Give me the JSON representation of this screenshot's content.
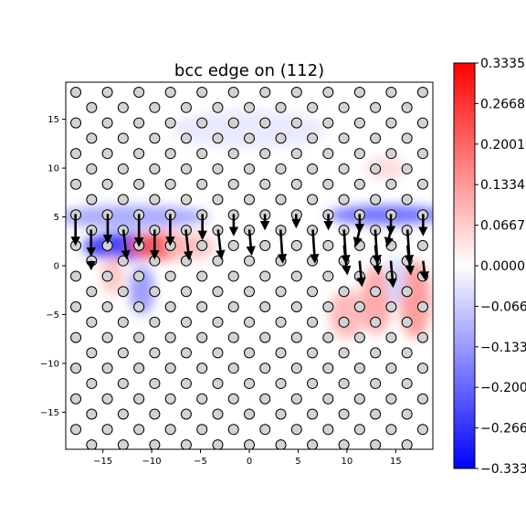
{
  "chart_data": {
    "type": "scatter",
    "title": "bcc edge on (112)",
    "xlabel": "",
    "ylabel": "",
    "xlim": [
      -18.8,
      18.8
    ],
    "ylim": [
      -18.8,
      18.8
    ],
    "xticks": [
      -15,
      -10,
      -5,
      0,
      5,
      10,
      15
    ],
    "yticks": [
      -15,
      -10,
      -5,
      0,
      5,
      10,
      15
    ],
    "grid": false,
    "atoms": {
      "row_spacing": 1.57,
      "col_spacing": 3.23,
      "odd_row_shift": 1.615,
      "y0": 0.0,
      "x0": 0.0,
      "marker": "circle",
      "fill": "#d3d3d3",
      "edge": "#000000"
    },
    "displacement_arrows": [
      {
        "x": -17.8,
        "y": 5.3,
        "dx": 0.0,
        "dy": -2.8
      },
      {
        "x": -16.2,
        "y": 3.7,
        "dx": 0.0,
        "dy": -2.3
      },
      {
        "x": -14.5,
        "y": 5.3,
        "dx": 0.0,
        "dy": -2.6
      },
      {
        "x": -12.9,
        "y": 3.7,
        "dx": 0.3,
        "dy": -2.6
      },
      {
        "x": -11.3,
        "y": 5.3,
        "dx": 0.0,
        "dy": -2.9
      },
      {
        "x": -9.7,
        "y": 3.7,
        "dx": 0.0,
        "dy": -2.6
      },
      {
        "x": -8.1,
        "y": 5.3,
        "dx": 0.0,
        "dy": -2.8
      },
      {
        "x": -6.5,
        "y": 3.7,
        "dx": 0.3,
        "dy": -2.7
      },
      {
        "x": -4.8,
        "y": 5.3,
        "dx": 0.0,
        "dy": -2.2
      },
      {
        "x": -3.2,
        "y": 3.7,
        "dx": 0.3,
        "dy": -2.6
      },
      {
        "x": -1.6,
        "y": 5.3,
        "dx": 0.0,
        "dy": -1.8
      },
      {
        "x": 0.0,
        "y": 3.7,
        "dx": 0.2,
        "dy": -2.2
      },
      {
        "x": 1.6,
        "y": 5.3,
        "dx": 0.0,
        "dy": -1.2
      },
      {
        "x": 3.2,
        "y": 3.7,
        "dx": 0.2,
        "dy": -3.0
      },
      {
        "x": 4.8,
        "y": 5.3,
        "dx": 0.0,
        "dy": -1.0
      },
      {
        "x": 6.5,
        "y": 3.7,
        "dx": 0.2,
        "dy": -3.0
      },
      {
        "x": 8.1,
        "y": 5.3,
        "dx": 0.0,
        "dy": -1.2
      },
      {
        "x": 9.7,
        "y": 3.7,
        "dx": 0.2,
        "dy": -3.1
      },
      {
        "x": 11.3,
        "y": 5.3,
        "dx": 0.0,
        "dy": -1.5
      },
      {
        "x": 12.9,
        "y": 3.7,
        "dx": 0.2,
        "dy": -3.1
      },
      {
        "x": 14.5,
        "y": 5.3,
        "dx": 0.0,
        "dy": -1.7
      },
      {
        "x": 16.2,
        "y": 3.7,
        "dx": 0.2,
        "dy": -3.1
      },
      {
        "x": 17.8,
        "y": 5.3,
        "dx": 0.0,
        "dy": -1.8
      },
      {
        "x": 9.7,
        "y": 2.1,
        "dx": 0.3,
        "dy": -2.6
      },
      {
        "x": 11.3,
        "y": 0.5,
        "dx": 0.2,
        "dy": -2.2
      },
      {
        "x": 12.9,
        "y": 2.1,
        "dx": 0.3,
        "dy": -2.6
      },
      {
        "x": 14.5,
        "y": 0.5,
        "dx": 0.2,
        "dy": -2.3
      },
      {
        "x": 16.2,
        "y": 2.1,
        "dx": 0.3,
        "dy": -2.6
      },
      {
        "x": 17.8,
        "y": 0.5,
        "dx": 0.2,
        "dy": -1.6
      },
      {
        "x": 11.3,
        "y": 3.7,
        "dx": -0.3,
        "dy": -1.3
      },
      {
        "x": 14.5,
        "y": 3.7,
        "dx": -0.3,
        "dy": -1.3
      },
      {
        "x": -16.2,
        "y": 0.5,
        "dx": 0.0,
        "dy": -0.5
      }
    ],
    "colorbar": {
      "cmap": "bwr",
      "ticks": [
        "0.3335",
        "0.2668",
        "0.2001",
        "0.1334",
        "0.0667",
        "0.0000",
        "-0.0667",
        "-0.1334",
        "-0.2001",
        "-0.2668",
        "-0.3335"
      ],
      "min": -0.3335,
      "max": 0.3335
    },
    "strain_field": [
      {
        "x": -13,
        "y": 2.0,
        "v": -0.27,
        "sx": 4.0,
        "sy": 1.4
      },
      {
        "x": -9,
        "y": 2.0,
        "v": 0.22,
        "sx": 3.5,
        "sy": 1.4
      },
      {
        "x": -12,
        "y": 5.0,
        "v": -0.12,
        "sx": 8.0,
        "sy": 1.2
      },
      {
        "x": -11,
        "y": -2.5,
        "v": -0.14,
        "sx": 1.3,
        "sy": 2.5
      },
      {
        "x": -14,
        "y": -1.0,
        "v": 0.08,
        "sx": 1.2,
        "sy": 2.0
      },
      {
        "x": -6,
        "y": 2.0,
        "v": 0.08,
        "sx": 2.5,
        "sy": 1.4
      },
      {
        "x": 14,
        "y": 5.2,
        "v": -0.2,
        "sx": 6.0,
        "sy": 1.0
      },
      {
        "x": 13,
        "y": -3.5,
        "v": 0.12,
        "sx": 1.6,
        "sy": 3.5
      },
      {
        "x": 17,
        "y": -3.5,
        "v": 0.14,
        "sx": 1.6,
        "sy": 4.0
      },
      {
        "x": 10,
        "y": -5.0,
        "v": 0.1,
        "sx": 1.8,
        "sy": 2.5
      },
      {
        "x": 15,
        "y": -1.5,
        "v": -0.06,
        "sx": 1.0,
        "sy": 2.5
      },
      {
        "x": 14,
        "y": 10.0,
        "v": 0.05,
        "sx": 2.0,
        "sy": 1.2
      },
      {
        "x": 0,
        "y": 14.0,
        "v": -0.03,
        "sx": 8.0,
        "sy": 2.0
      }
    ]
  }
}
